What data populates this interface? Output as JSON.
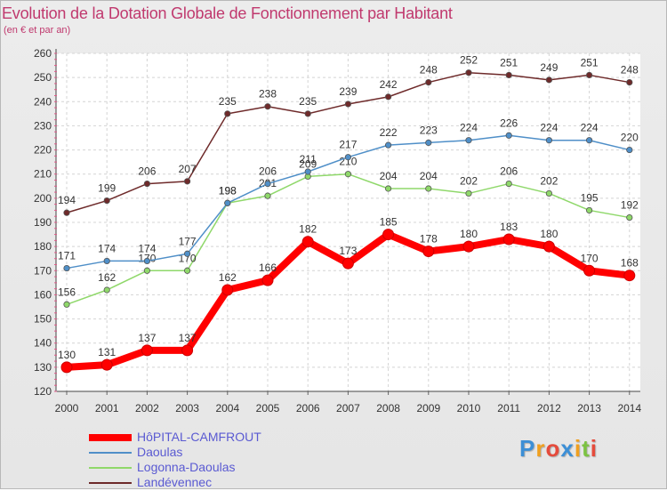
{
  "title": "Evolution de la Dotation Globale de Fonctionnement par Habitant",
  "subtitle": "(en € et par an)",
  "logo": {
    "letters": [
      "P",
      "r",
      "o",
      "x",
      "i",
      "t",
      "i"
    ],
    "colors": [
      "#3c8fd6",
      "#f0a020",
      "#e54b3c",
      "#3c8fd6",
      "#f0a020",
      "#7cc242",
      "#e54b3c"
    ]
  },
  "chart_data": {
    "type": "line",
    "x": [
      "2000",
      "2001",
      "2002",
      "2003",
      "2004",
      "2005",
      "2006",
      "2007",
      "2008",
      "2009",
      "2010",
      "2011",
      "2012",
      "2013",
      "2014"
    ],
    "ylim": [
      120,
      260
    ],
    "yticks": [
      120,
      130,
      140,
      150,
      160,
      170,
      180,
      190,
      200,
      210,
      220,
      230,
      240,
      250,
      260
    ],
    "grid": true,
    "legend_position": "bottom-left",
    "series": [
      {
        "name": "HôPITAL-CAMFROUT",
        "color": "#ff0000",
        "values": [
          130,
          131,
          137,
          137,
          162,
          166,
          182,
          173,
          185,
          178,
          180,
          183,
          180,
          170,
          168
        ]
      },
      {
        "name": "Daoulas",
        "color": "#4f8fc8",
        "values": [
          171,
          174,
          174,
          177,
          198,
          206,
          211,
          217,
          222,
          223,
          224,
          226,
          224,
          224,
          220
        ]
      },
      {
        "name": "Logonna-Daoulas",
        "color": "#8fd86a",
        "values": [
          156,
          162,
          170,
          170,
          198,
          201,
          209,
          210,
          204,
          204,
          202,
          206,
          202,
          195,
          192
        ]
      },
      {
        "name": "Landévennec",
        "color": "#6e2a2a",
        "values": [
          194,
          199,
          206,
          207,
          235,
          238,
          235,
          239,
          242,
          248,
          252,
          251,
          249,
          251,
          248
        ]
      }
    ]
  }
}
